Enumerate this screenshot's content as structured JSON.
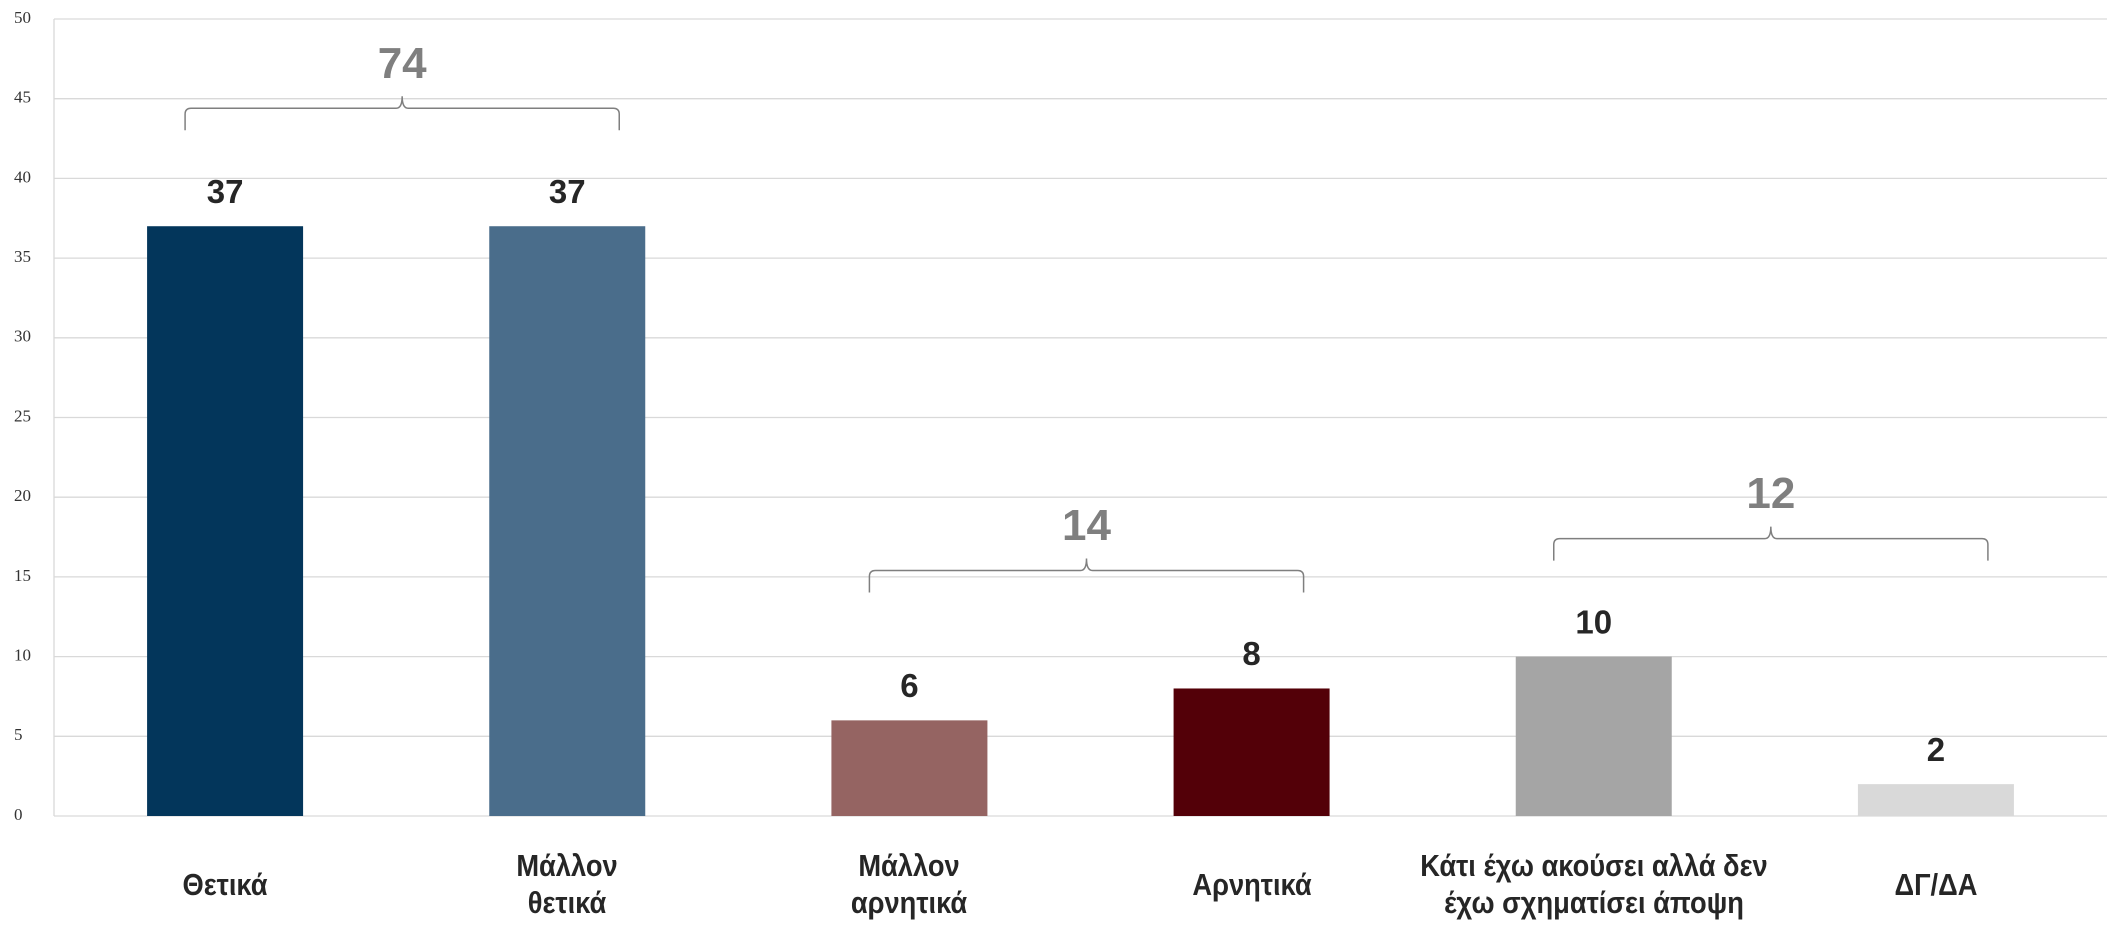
{
  "chart_data": {
    "type": "bar",
    "categories": [
      "Θετικά",
      "Μάλλον θετικά",
      "Μάλλον αρνητικά",
      "Αρνητικά",
      "Κάτι έχω ακούσει αλλά δεν έχω σχηματίσει άποψη",
      "ΔΓ/ΔΑ"
    ],
    "values": [
      37,
      37,
      6,
      8,
      10,
      2
    ],
    "colors": [
      "#03365b",
      "#4a6d8b",
      "#956462",
      "#530008",
      "#a5a5a5",
      "#d9d9d9"
    ],
    "group_totals": [
      74,
      14,
      12
    ],
    "ylim": [
      0,
      50
    ],
    "yticks": [
      0,
      5,
      10,
      15,
      20,
      25,
      30,
      35,
      40,
      45,
      50
    ],
    "grid": true
  }
}
